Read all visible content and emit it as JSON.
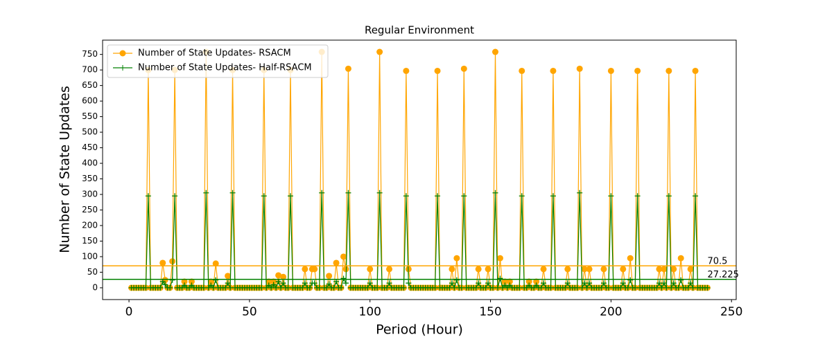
{
  "chart_data": {
    "type": "line",
    "title": "Regular Environment",
    "xlabel": "Period (Hour)",
    "ylabel": "Number of State Updates",
    "x": [
      1,
      2,
      3,
      4,
      5,
      6,
      7,
      8,
      9,
      10,
      11,
      12,
      13,
      14,
      15,
      16,
      17,
      18,
      19,
      20,
      21,
      22,
      23,
      24,
      25,
      26,
      27,
      28,
      29,
      30,
      31,
      32,
      33,
      34,
      35,
      36,
      37,
      38,
      39,
      40,
      41,
      42,
      43,
      44,
      45,
      46,
      47,
      48,
      49,
      50,
      51,
      52,
      53,
      54,
      55,
      56,
      57,
      58,
      59,
      60,
      61,
      62,
      63,
      64,
      65,
      66,
      67,
      68,
      69,
      70,
      71,
      72,
      73,
      74,
      75,
      76,
      77,
      78,
      79,
      80,
      81,
      82,
      83,
      84,
      85,
      86,
      87,
      88,
      89,
      90,
      91,
      92,
      93,
      94,
      95,
      96,
      97,
      98,
      99,
      100,
      101,
      102,
      103,
      104,
      105,
      106,
      107,
      108,
      109,
      110,
      111,
      112,
      113,
      114,
      115,
      116,
      117,
      118,
      119,
      120,
      121,
      122,
      123,
      124,
      125,
      126,
      127,
      128,
      129,
      130,
      131,
      132,
      133,
      134,
      135,
      136,
      137,
      138,
      139,
      140,
      141,
      142,
      143,
      144,
      145,
      146,
      147,
      148,
      149,
      150,
      151,
      152,
      153,
      154,
      155,
      156,
      157,
      158,
      159,
      160,
      161,
      162,
      163,
      164,
      165,
      166,
      167,
      168,
      169,
      170,
      171,
      172,
      173,
      174,
      175,
      176,
      177,
      178,
      179,
      180,
      181,
      182,
      183,
      184,
      185,
      186,
      187,
      188,
      189,
      190,
      191,
      192,
      193,
      194,
      195,
      196,
      197,
      198,
      199,
      200,
      201,
      202,
      203,
      204,
      205,
      206,
      207,
      208,
      209,
      210,
      211,
      212,
      213,
      214,
      215,
      216,
      217,
      218,
      219,
      220,
      221,
      222,
      223,
      224,
      225,
      226,
      227,
      228,
      229,
      230,
      231,
      232,
      233,
      234,
      235,
      236,
      237,
      238,
      239,
      240
    ],
    "series": [
      {
        "name": "Number of State Updates- RSACM",
        "color": "#ffa500",
        "marker": "circle",
        "values": [
          0,
          0,
          0,
          0,
          0,
          0,
          0,
          700,
          0,
          0,
          0,
          0,
          0,
          80,
          25,
          0,
          0,
          85,
          700,
          0,
          0,
          0,
          20,
          0,
          0,
          20,
          0,
          0,
          0,
          0,
          0,
          758,
          0,
          20,
          0,
          78,
          0,
          0,
          0,
          0,
          38,
          0,
          700,
          0,
          0,
          0,
          0,
          0,
          0,
          0,
          0,
          0,
          0,
          0,
          0,
          700,
          0,
          20,
          0,
          20,
          0,
          40,
          0,
          35,
          0,
          0,
          700,
          0,
          0,
          0,
          0,
          0,
          60,
          0,
          0,
          60,
          60,
          0,
          0,
          758,
          0,
          0,
          38,
          0,
          0,
          80,
          0,
          0,
          100,
          60,
          704,
          0,
          0,
          0,
          0,
          0,
          0,
          0,
          0,
          60,
          0,
          0,
          0,
          758,
          0,
          0,
          0,
          60,
          0,
          0,
          0,
          0,
          0,
          0,
          697,
          60,
          0,
          0,
          0,
          0,
          0,
          0,
          0,
          0,
          0,
          0,
          0,
          697,
          0,
          0,
          0,
          0,
          0,
          60,
          0,
          95,
          0,
          0,
          704,
          0,
          0,
          0,
          0,
          0,
          60,
          0,
          0,
          0,
          60,
          0,
          0,
          758,
          0,
          95,
          0,
          20,
          0,
          20,
          0,
          0,
          0,
          0,
          697,
          0,
          0,
          20,
          0,
          0,
          20,
          0,
          0,
          60,
          0,
          0,
          0,
          697,
          0,
          0,
          0,
          0,
          0,
          60,
          0,
          0,
          0,
          0,
          704,
          0,
          60,
          0,
          60,
          0,
          0,
          0,
          0,
          0,
          60,
          0,
          0,
          697,
          0,
          0,
          0,
          0,
          60,
          0,
          0,
          95,
          0,
          0,
          697,
          0,
          0,
          0,
          0,
          0,
          0,
          0,
          0,
          60,
          0,
          60,
          0,
          697,
          0,
          60,
          0,
          0,
          95,
          0,
          0,
          0,
          60,
          0,
          697,
          0,
          0,
          0,
          0,
          0
        ]
      },
      {
        "name": "Number of State Updates- Half-RSACM",
        "color": "#008000",
        "marker": "plus",
        "values": [
          0,
          0,
          0,
          0,
          0,
          0,
          0,
          295,
          0,
          0,
          0,
          0,
          0,
          20,
          10,
          0,
          0,
          25,
          295,
          0,
          0,
          0,
          8,
          0,
          0,
          8,
          0,
          0,
          0,
          0,
          0,
          305,
          0,
          8,
          0,
          25,
          0,
          0,
          0,
          0,
          15,
          0,
          305,
          0,
          0,
          0,
          0,
          0,
          0,
          0,
          0,
          0,
          0,
          0,
          0,
          295,
          0,
          8,
          0,
          10,
          0,
          20,
          0,
          15,
          0,
          0,
          295,
          0,
          0,
          0,
          0,
          0,
          15,
          0,
          0,
          15,
          15,
          0,
          0,
          305,
          0,
          0,
          12,
          0,
          0,
          20,
          0,
          0,
          30,
          15,
          305,
          0,
          0,
          0,
          0,
          0,
          0,
          0,
          0,
          15,
          0,
          0,
          0,
          305,
          0,
          0,
          0,
          15,
          0,
          0,
          0,
          0,
          0,
          0,
          295,
          15,
          0,
          0,
          0,
          0,
          0,
          0,
          0,
          0,
          0,
          0,
          0,
          295,
          0,
          0,
          0,
          0,
          0,
          15,
          0,
          25,
          0,
          0,
          295,
          0,
          0,
          0,
          0,
          0,
          15,
          0,
          0,
          0,
          15,
          0,
          0,
          305,
          0,
          30,
          0,
          8,
          0,
          8,
          0,
          0,
          0,
          0,
          295,
          0,
          0,
          8,
          0,
          0,
          8,
          0,
          0,
          15,
          0,
          0,
          0,
          295,
          0,
          0,
          0,
          0,
          0,
          15,
          0,
          0,
          0,
          0,
          305,
          0,
          15,
          0,
          15,
          0,
          0,
          0,
          0,
          0,
          15,
          0,
          0,
          295,
          0,
          0,
          0,
          0,
          15,
          0,
          0,
          25,
          0,
          0,
          295,
          0,
          0,
          0,
          0,
          0,
          0,
          0,
          0,
          15,
          0,
          15,
          0,
          295,
          0,
          15,
          0,
          0,
          25,
          0,
          0,
          0,
          15,
          0,
          295,
          0,
          0,
          0,
          0,
          0
        ]
      }
    ],
    "hlines": [
      {
        "value": 70.5,
        "color": "#ffa500"
      },
      {
        "value": 27.225,
        "color": "#008000"
      }
    ],
    "xlim": [
      -10.95,
      251.95
    ],
    "xticks": [
      0,
      50,
      100,
      150,
      200,
      250
    ],
    "ylim": [
      -37.9,
      795.9
    ],
    "yticks": [
      0,
      50,
      100,
      150,
      200,
      250,
      300,
      350,
      400,
      450,
      500,
      550,
      600,
      650,
      700,
      750
    ],
    "legend": "upper left"
  }
}
